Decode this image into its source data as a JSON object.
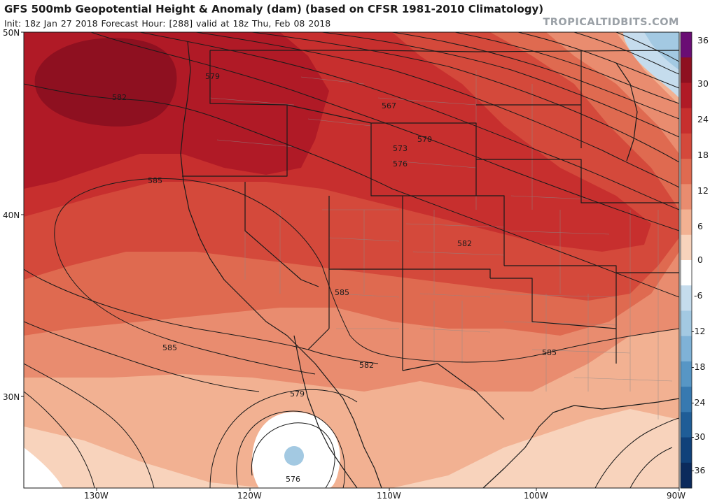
{
  "header": {
    "title": "GFS 500mb Geopotential Height & Anomaly (dam) (based on CFSR 1981-2010 Climatology)",
    "subtitle": "Init: 18z Jan 27 2018   Forecast Hour: [288]   valid at 18z Thu, Feb 08 2018",
    "brand": "TROPICALTIDBITS.COM"
  },
  "axes": {
    "lat_labels": [
      "50N",
      "40N",
      "30N"
    ],
    "lon_labels": [
      "130W",
      "120W",
      "110W",
      "100W",
      "90W"
    ]
  },
  "contour_labels": [
    "579",
    "582",
    "585",
    "567",
    "570",
    "573",
    "576",
    "582",
    "585",
    "585",
    "582",
    "585",
    "579",
    "576"
  ],
  "colorbar": {
    "labels": [
      "36",
      "30",
      "24",
      "18",
      "12",
      "6",
      "0",
      "-6",
      "-12",
      "-18",
      "-24",
      "-30",
      "-36"
    ],
    "colors": [
      "#6a0d74",
      "#8e1020",
      "#b01a26",
      "#c72f2e",
      "#d4493b",
      "#df6a50",
      "#e98c6f",
      "#f2b192",
      "#f8d3bc",
      "#ffffff",
      "#c5dced",
      "#a3c9e2",
      "#7fb2d7",
      "#5796c5",
      "#3779b0",
      "#1f5d97",
      "#10417a",
      "#0b2a5c"
    ]
  },
  "colors": {
    "accent": "#c72f2e",
    "contour": "#1a1a1a",
    "boundary": "#1a1a1a",
    "county": "#8a8a8a"
  }
}
